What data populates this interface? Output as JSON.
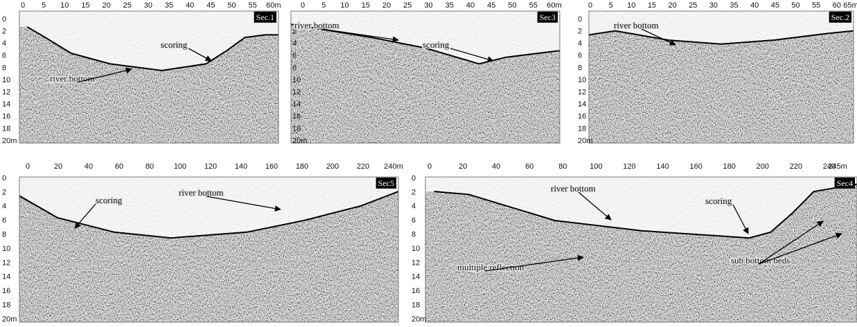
{
  "panels": [
    {
      "label": "Sec.1",
      "x_ticks": [
        "0",
        "5",
        "10",
        "15",
        "20",
        "25",
        "30",
        "35",
        "40",
        "45",
        "50",
        "55",
        "60m"
      ],
      "y_ticks": [
        "0",
        "2",
        "4",
        "6",
        "8",
        "10",
        "12",
        "14",
        "16",
        "18",
        "20m"
      ],
      "annotations": [
        "scoring",
        "river bottom"
      ]
    },
    {
      "label": "Sec3",
      "x_ticks": [
        "0",
        "5",
        "10",
        "15",
        "20",
        "25",
        "30",
        "35",
        "40",
        "45",
        "50",
        "55",
        "60m"
      ],
      "y_ticks": [
        "2",
        "4",
        "6",
        "8",
        "10",
        "12",
        "14",
        "16",
        "18",
        "20m"
      ],
      "annotations": [
        "river bottom",
        "scoring"
      ]
    },
    {
      "label": "Sec.2",
      "x_ticks": [
        "0",
        "5",
        "10",
        "15",
        "20",
        "25",
        "30",
        "35",
        "40",
        "45",
        "50",
        "55",
        "60",
        "65m"
      ],
      "y_ticks": [
        "0",
        "2",
        "4",
        "6",
        "8",
        "10",
        "12",
        "14",
        "16",
        "18",
        "20m"
      ],
      "annotations": [
        "river bottom"
      ]
    },
    {
      "label": "Sec5",
      "x_ticks": [
        "0",
        "20",
        "40",
        "60",
        "80",
        "100",
        "120",
        "140",
        "160",
        "180",
        "200",
        "220",
        "240m"
      ],
      "y_ticks": [
        "0",
        "2",
        "4",
        "6",
        "8",
        "10",
        "12",
        "14",
        "16",
        "18",
        "20m"
      ],
      "annotations": [
        "scoring",
        "river bottom"
      ]
    },
    {
      "label": "Sec4",
      "x_ticks": [
        "0",
        "20",
        "40",
        "60",
        "80",
        "100",
        "120",
        "140",
        "160",
        "180",
        "200",
        "220",
        "240",
        "245m"
      ],
      "y_ticks": [
        "0",
        "2",
        "4",
        "6",
        "8",
        "10",
        "12",
        "14",
        "16",
        "18",
        "20m"
      ],
      "annotations": [
        "river bottom",
        "scoring",
        "multiple reflection",
        "sub bottom beds"
      ]
    }
  ]
}
